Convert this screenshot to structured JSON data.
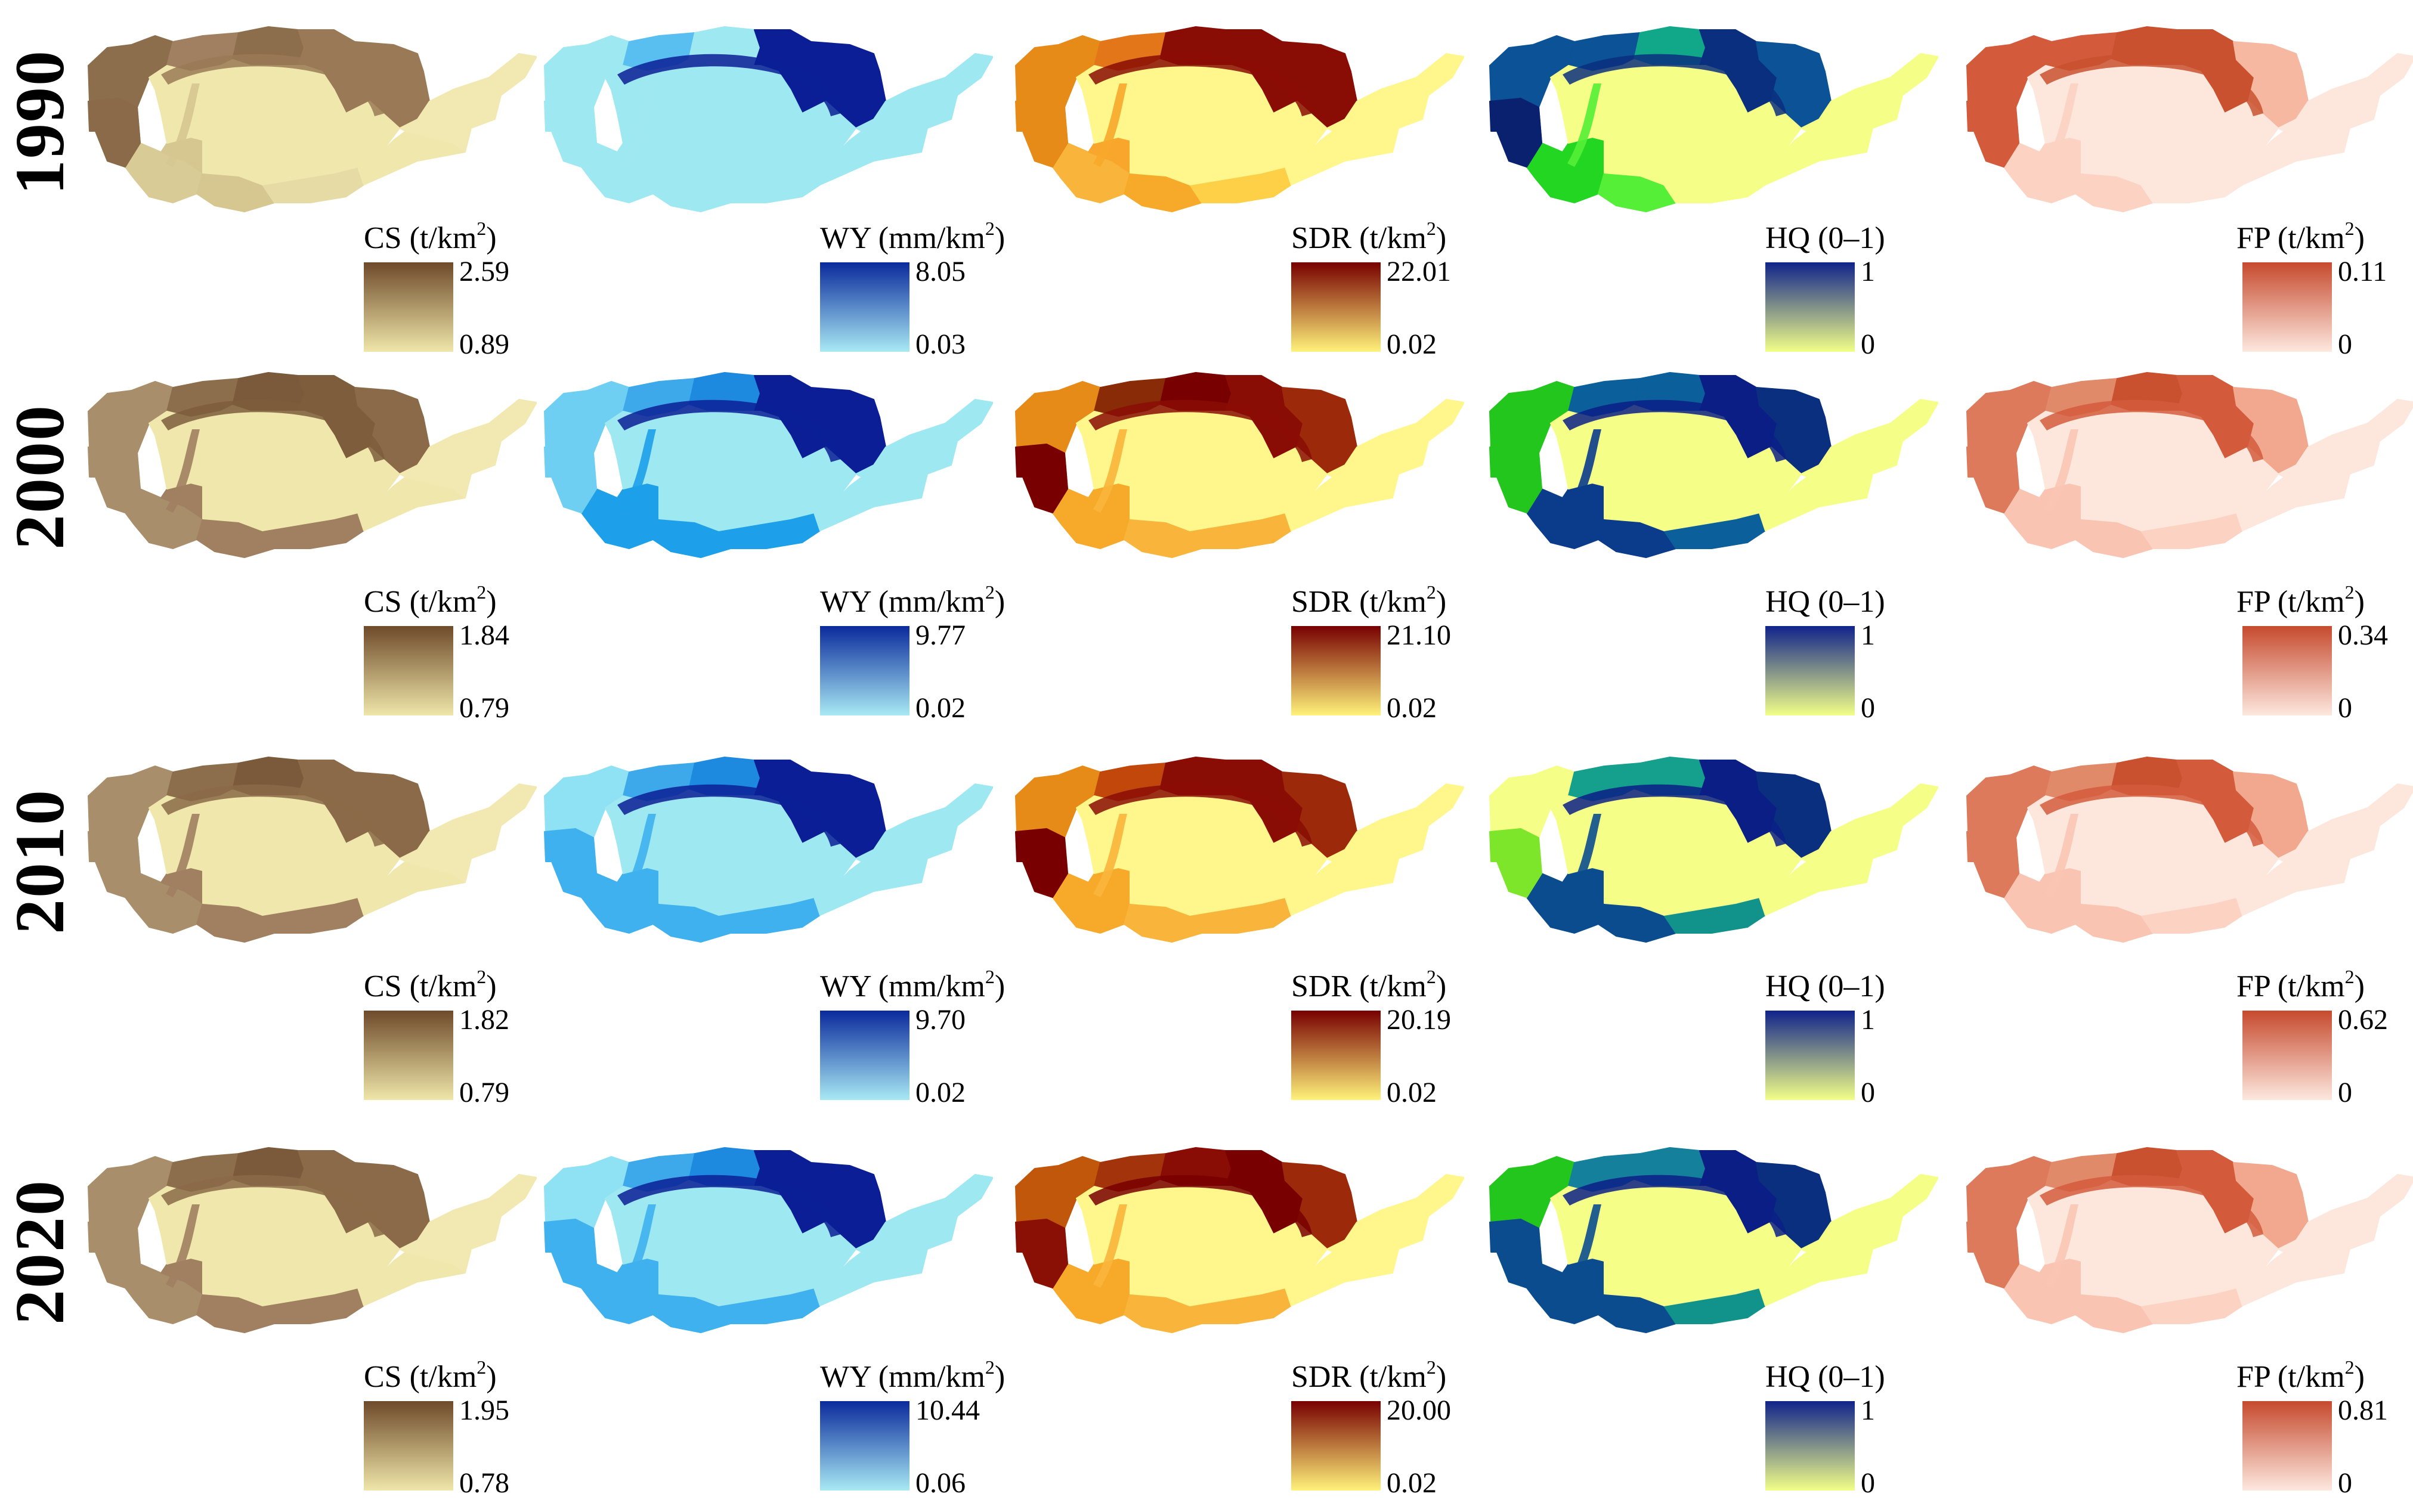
{
  "years": [
    "1990",
    "2000",
    "2010",
    "2020"
  ],
  "indicators": [
    {
      "key": "CS",
      "title": "CS (t/km",
      "sup": "2",
      "close": ")",
      "ramp": [
        "#efe6a9",
        "#6e4a2a"
      ]
    },
    {
      "key": "WY",
      "title": "WY (mm/km",
      "sup": "2",
      "close": ")",
      "ramp": [
        "#a8e9f4",
        "#0a2a9c"
      ]
    },
    {
      "key": "SDR",
      "title": "SDR (t/km",
      "sup": "2",
      "close": ")",
      "ramp": [
        "#fff27a",
        "#780000"
      ]
    },
    {
      "key": "HQ",
      "title": "HQ (0–1)",
      "sup": "",
      "close": "",
      "ramp": [
        "#f2ff88",
        "#10238a"
      ]
    },
    {
      "key": "FP",
      "title": "FP (t/km",
      "sup": "2",
      "close": ")",
      "ramp": [
        "#fde8df",
        "#c64a2e"
      ]
    }
  ],
  "panels": {
    "1990": {
      "CS": {
        "max": "2.59",
        "min": "0.89"
      },
      "WY": {
        "max": "8.05",
        "min": "0.03"
      },
      "SDR": {
        "max": "22.01",
        "min": "0.02"
      },
      "HQ": {
        "max": "1",
        "min": "0"
      },
      "FP": {
        "max": "0.11",
        "min": "0"
      }
    },
    "2000": {
      "CS": {
        "max": "1.84",
        "min": "0.79"
      },
      "WY": {
        "max": "9.77",
        "min": "0.02"
      },
      "SDR": {
        "max": "21.10",
        "min": "0.02"
      },
      "HQ": {
        "max": "1",
        "min": "0"
      },
      "FP": {
        "max": "0.34",
        "min": "0"
      }
    },
    "2010": {
      "CS": {
        "max": "1.82",
        "min": "0.79"
      },
      "WY": {
        "max": "9.70",
        "min": "0.02"
      },
      "SDR": {
        "max": "20.19",
        "min": "0.02"
      },
      "HQ": {
        "max": "1",
        "min": "0"
      },
      "FP": {
        "max": "0.62",
        "min": "0"
      }
    },
    "2020": {
      "CS": {
        "max": "1.95",
        "min": "0.78"
      },
      "WY": {
        "max": "10.44",
        "min": "0.06"
      },
      "SDR": {
        "max": "20.00",
        "min": "0.02"
      },
      "HQ": {
        "max": "1",
        "min": "0"
      },
      "FP": {
        "max": "0.81",
        "min": "0"
      }
    }
  },
  "region_fill": {
    "1990": {
      "CS": [
        "#8d6e4c",
        "#a08060",
        "#8d6e4c",
        "#9a7a56",
        "#9a7a56",
        "#d9cb95",
        "#d6c690",
        "#e6dba5",
        "#f0e7ad",
        "#d6c690",
        "#f1e9b1",
        "#8a6a48",
        "#f0e7ad"
      ],
      "WY": [
        "#9ee8f2",
        "#58bff0",
        "#9ee8f2",
        "#0b1e95",
        "#0b1e95",
        "#9ee8f2",
        "#9ee8f2",
        "#9ee8f2",
        "#9ee8f2",
        "#9ee8f2",
        "#9ee8f2",
        "#9ee8f2",
        "#9ee8f2"
      ],
      "SDR": [
        "#e68a18",
        "#e4761a",
        "#8a0d05",
        "#8a0d05",
        "#8a0d05",
        "#f9b53b",
        "#f7a92a",
        "#fdd048",
        "#fff68c",
        "#f8a62c",
        "#fff68c",
        "#e68a18",
        "#fff68c"
      ],
      "HQ": [
        "#0b5296",
        "#0b5296",
        "#11a88a",
        "#0b2f7f",
        "#0b5296",
        "#22d622",
        "#54ef36",
        "#f5ff88",
        "#f5ff88",
        "#22d622",
        "#f5ff88",
        "#0a2170",
        "#f5ff88"
      ],
      "FP": [
        "#d45a3c",
        "#d45a3c",
        "#c9512f",
        "#c9512f",
        "#f7b8a2",
        "#fcd2c2",
        "#fcd2c2",
        "#fde6db",
        "#fde6db",
        "#fcd2c2",
        "#fde6db",
        "#d45a3c",
        "#fde6db"
      ]
    },
    "2000": {
      "CS": [
        "#a88e6a",
        "#8d6e4c",
        "#7a5a3a",
        "#7d5d3c",
        "#8a6a48",
        "#a88e6a",
        "#a08060",
        "#a08060",
        "#f0e7ad",
        "#a08060",
        "#f1e9b1",
        "#a88e6a",
        "#f0e7ad"
      ],
      "WY": [
        "#6fcff2",
        "#3da9ea",
        "#1d8ae0",
        "#0b1e95",
        "#0b1e95",
        "#1da0e9",
        "#1da0e9",
        "#1da0e9",
        "#9ee8f2",
        "#1da0e9",
        "#9ee8f2",
        "#6fcff2",
        "#9ee8f2"
      ],
      "SDR": [
        "#e68a18",
        "#8a2b07",
        "#780000",
        "#8a0d05",
        "#9c2a0a",
        "#f7a92a",
        "#f9b53b",
        "#f9b53b",
        "#fff68c",
        "#f7a92a",
        "#fff68c",
        "#780000",
        "#fff68c"
      ],
      "HQ": [
        "#22c61c",
        "#0b5f9a",
        "#0b5f9a",
        "#0b1e86",
        "#0b2f7f",
        "#0b3c8c",
        "#0b3c8c",
        "#0b5f9a",
        "#f5ff88",
        "#0b3c8c",
        "#f5ff88",
        "#22c61c",
        "#f5ff88"
      ],
      "FP": [
        "#de7a5c",
        "#e08a6a",
        "#c9512f",
        "#d45a3c",
        "#f1a88e",
        "#f9c5b2",
        "#f9c5b2",
        "#fcd2c2",
        "#fde6db",
        "#f9c5b2",
        "#fde6db",
        "#de7a5c",
        "#fde6db"
      ]
    },
    "2010": {
      "CS": [
        "#a88e6a",
        "#8d6e4c",
        "#7a5a3a",
        "#8a6a48",
        "#8a6a48",
        "#a88e6a",
        "#a08060",
        "#a08060",
        "#f0e7ad",
        "#a08060",
        "#f1e9b1",
        "#a88e6a",
        "#f0e7ad"
      ],
      "WY": [
        "#8fe1f4",
        "#3da9ea",
        "#1d8ae0",
        "#0b1e95",
        "#0b1e95",
        "#3fb1ee",
        "#3fb1ee",
        "#3fb1ee",
        "#9ee8f2",
        "#3fb1ee",
        "#9ee8f2",
        "#3fb1ee",
        "#9ee8f2"
      ],
      "SDR": [
        "#e68a18",
        "#c1470b",
        "#8a0d05",
        "#8a0d05",
        "#9c2a0a",
        "#f7a92a",
        "#f9b53b",
        "#f9b53b",
        "#fff68c",
        "#f7a92a",
        "#fff68c",
        "#780000",
        "#fff68c"
      ],
      "HQ": [
        "#f5ff88",
        "#14a08c",
        "#14a08c",
        "#0b1e86",
        "#0b2f7f",
        "#0b4c8f",
        "#0b4c8f",
        "#11938c",
        "#f5ff88",
        "#0b4c8f",
        "#f5ff88",
        "#7ee62a",
        "#f5ff88"
      ],
      "FP": [
        "#de7a5c",
        "#e08a6a",
        "#c9512f",
        "#d45a3c",
        "#f1a88e",
        "#f9c5b2",
        "#f9c5b2",
        "#fcd2c2",
        "#fde6db",
        "#f9c5b2",
        "#fde6db",
        "#de7a5c",
        "#fde6db"
      ]
    },
    "2020": {
      "CS": [
        "#a88e6a",
        "#8d6e4c",
        "#7a5a3a",
        "#8a6a48",
        "#8a6a48",
        "#a88e6a",
        "#a08060",
        "#a08060",
        "#f0e7ad",
        "#a08060",
        "#f1e9b1",
        "#a88e6a",
        "#f0e7ad"
      ],
      "WY": [
        "#8fe1f4",
        "#3da9ea",
        "#1d8ae0",
        "#0b1e95",
        "#0b1e95",
        "#3fb1ee",
        "#3fb1ee",
        "#3fb1ee",
        "#9ee8f2",
        "#3fb1ee",
        "#9ee8f2",
        "#3fb1ee",
        "#9ee8f2"
      ],
      "SDR": [
        "#c1570b",
        "#a3330a",
        "#8a0d05",
        "#780000",
        "#9c2a0a",
        "#f7a92a",
        "#f9b53b",
        "#f9b53b",
        "#fff68c",
        "#f7a92a",
        "#fff68c",
        "#8a1005",
        "#fff68c"
      ],
      "HQ": [
        "#22c61c",
        "#14809c",
        "#14809c",
        "#0b1e86",
        "#0b2f7f",
        "#0b4c8f",
        "#0b4c8f",
        "#11938c",
        "#f5ff88",
        "#0b4c8f",
        "#f5ff88",
        "#0b4c8f",
        "#f5ff88"
      ],
      "FP": [
        "#de7a5c",
        "#e08a6a",
        "#c9512f",
        "#d45a3c",
        "#f1a88e",
        "#f9c5b2",
        "#f9c5b2",
        "#fcd2c2",
        "#fde6db",
        "#f9c5b2",
        "#fde6db",
        "#de7a5c",
        "#fde6db"
      ]
    }
  }
}
